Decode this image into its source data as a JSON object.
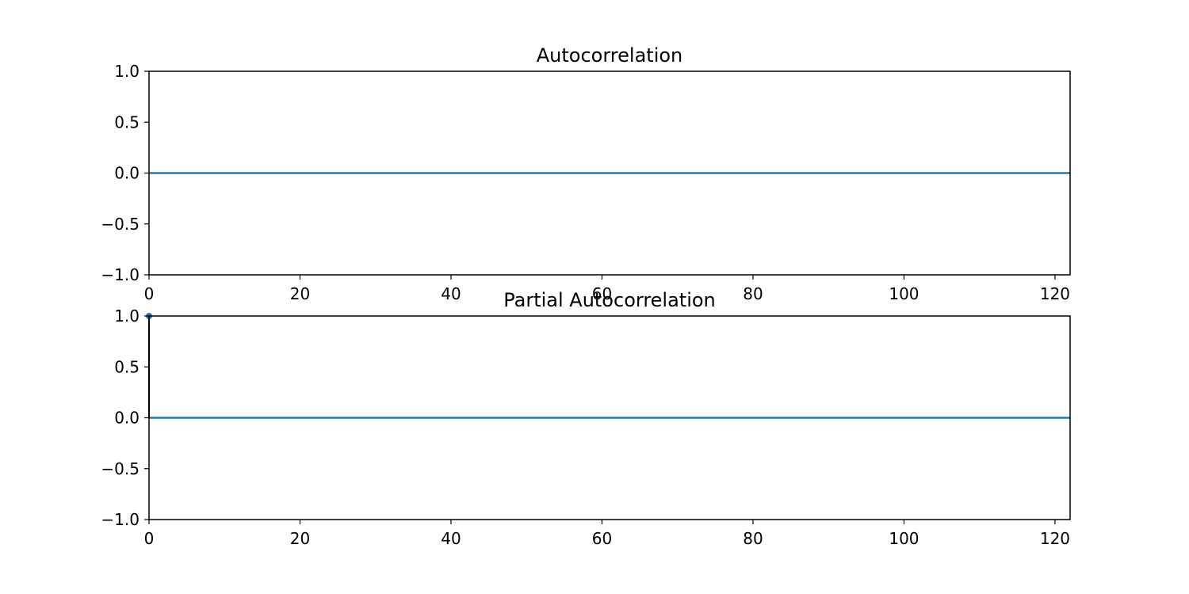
{
  "colors": {
    "series": "#1f77b4",
    "stem": "#000000",
    "axes": "#000000",
    "background": "#ffffff"
  },
  "chart_data": [
    {
      "type": "line",
      "title": "Autocorrelation",
      "xlabel": "",
      "ylabel": "",
      "xlim": [
        0,
        122
      ],
      "ylim": [
        -1.0,
        1.0
      ],
      "xticks": [
        0,
        20,
        40,
        60,
        80,
        100,
        120
      ],
      "xtick_labels": [
        "0",
        "20",
        "40",
        "60",
        "80",
        "100",
        "120"
      ],
      "yticks": [
        -1.0,
        -0.5,
        0.0,
        0.5,
        1.0
      ],
      "ytick_labels": [
        "−1.0",
        "−0.5",
        "0.0",
        "0.5",
        "1.0"
      ],
      "grid": false,
      "reference_line_y": 0.0,
      "stems": []
    },
    {
      "type": "line",
      "title": "Partial Autocorrelation",
      "xlabel": "",
      "ylabel": "",
      "xlim": [
        0,
        122
      ],
      "ylim": [
        -1.0,
        1.0
      ],
      "xticks": [
        0,
        20,
        40,
        60,
        80,
        100,
        120
      ],
      "xtick_labels": [
        "0",
        "20",
        "40",
        "60",
        "80",
        "100",
        "120"
      ],
      "yticks": [
        -1.0,
        -0.5,
        0.0,
        0.5,
        1.0
      ],
      "ytick_labels": [
        "−1.0",
        "−0.5",
        "0.0",
        "0.5",
        "1.0"
      ],
      "grid": false,
      "reference_line_y": 0.0,
      "stems": [
        {
          "x": 0,
          "y": 1.0
        }
      ]
    }
  ]
}
